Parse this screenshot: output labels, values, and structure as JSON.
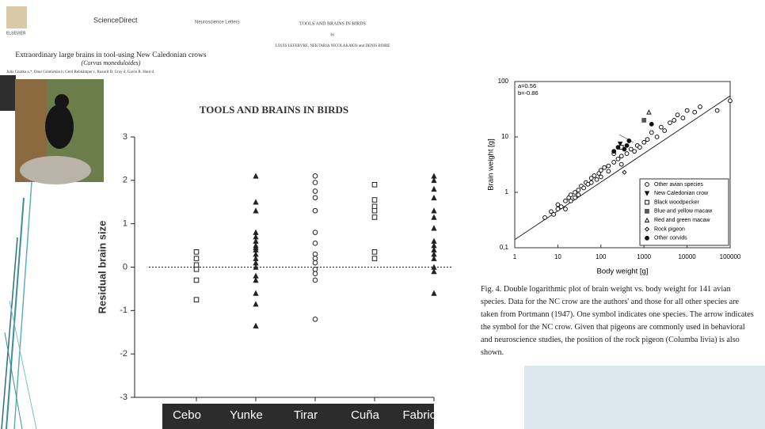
{
  "paper_header": {
    "publisher": "ELSEVIER",
    "site": "ScienceDirect",
    "journal": "Neuroscience Letters",
    "title": "Extraordinary large brains in tool-using New Caledonian crows",
    "species": "(Corvus moneduloides)",
    "authors": "Julia Cnotka a,*, Onur Güntürkün b, Gerd Rehkämper c, Russell D. Gray d, Gavin R. Hunt d"
  },
  "book_header": {
    "title": "TOOLS AND BRAINS IN BIRDS",
    "by": "by",
    "authors": "LOUIS LEFEBVRE, NEKTARIA NICOLAKAKIS and DENIS BOIRE"
  },
  "caption": "Fig. 4. Double logarithmic plot of brain weight vs. body weight for 141 avian species. Data for the NC crow are the authors' and those for all other species are taken from Portmann (1947). One symbol indicates one species. The arrow indicates the symbol for the NC crow. Given that pigeons are commonly used in behavioral and neuroscience studies, the position of the rock pigeon (Columba livia) is also shown.",
  "chart_data": [
    {
      "type": "strip",
      "title": "TOOLS AND BRAINS IN BIRDS",
      "y_label": "Residual brain size",
      "categories": [
        "Cebo",
        "Yunke",
        "Tirar",
        "Cuña",
        "Fabricar"
      ],
      "markers": [
        "square",
        "triangle",
        "circle",
        "square",
        "triangle"
      ],
      "filled": [
        false,
        true,
        false,
        false,
        true
      ],
      "values": [
        [
          0.35,
          0.2,
          0.05,
          -0.05,
          -0.3,
          -0.75
        ],
        [
          2.1,
          1.5,
          1.3,
          0.8,
          0.7,
          0.6,
          0.5,
          0.45,
          0.4,
          0.3,
          0.2,
          0.1,
          0.0,
          -0.2,
          -0.3,
          -0.6,
          -0.85,
          -1.35
        ],
        [
          2.1,
          1.95,
          1.75,
          1.6,
          1.3,
          1.3,
          0.8,
          0.55,
          0.3,
          0.2,
          0.1,
          -0.05,
          -0.15,
          -0.3,
          -1.2
        ],
        [
          1.9,
          1.55,
          1.4,
          1.3,
          1.15,
          0.35,
          0.2
        ],
        [
          2.1,
          2.0,
          1.8,
          1.6,
          1.3,
          1.15,
          0.9,
          0.6,
          0.5,
          0.4,
          0.3,
          0.2,
          0.0,
          -0.1,
          -0.6
        ]
      ],
      "ylim": [
        -3,
        3
      ],
      "yticks": [
        -3,
        -2,
        -1,
        0,
        1,
        2,
        3
      ],
      "zero_line": true
    },
    {
      "type": "scatter",
      "x_label": "Body weight [g]",
      "y_label": "Brain weight [g]",
      "xscale": "log",
      "yscale": "log",
      "xlim": [
        1,
        100000
      ],
      "xticks": [
        1,
        10,
        100,
        1000,
        10000,
        100000
      ],
      "ylim": [
        0.1,
        100
      ],
      "yticks": [
        {
          "value": 0.1,
          "label": "0,1"
        },
        1,
        10,
        100
      ],
      "annotations": [
        "a=0.56",
        "b=-0.86"
      ],
      "fit_line": {
        "x": [
          1,
          100000
        ],
        "y": [
          0.14,
          55
        ]
      },
      "legend": "lower right",
      "series": [
        {
          "name": "Other avian species",
          "marker": "circle",
          "filled": false,
          "color": "#111",
          "x": [
            5,
            7,
            8,
            10,
            10,
            12,
            15,
            15,
            18,
            20,
            20,
            25,
            25,
            30,
            30,
            35,
            40,
            45,
            50,
            60,
            60,
            70,
            80,
            90,
            100,
            100,
            120,
            150,
            150,
            200,
            200,
            250,
            300,
            300,
            400,
            500,
            600,
            700,
            800,
            1000,
            1200,
            1500,
            2000,
            2500,
            3000,
            4000,
            5000,
            6000,
            8000,
            10000,
            15000,
            20000,
            50000,
            100000
          ],
          "y": [
            0.35,
            0.45,
            0.4,
            0.5,
            0.6,
            0.55,
            0.5,
            0.7,
            0.8,
            0.7,
            0.9,
            1.0,
            0.8,
            1.1,
            0.9,
            1.3,
            1.2,
            1.5,
            1.4,
            1.8,
            1.5,
            2.0,
            1.7,
            2.2,
            2.5,
            1.9,
            2.8,
            3.0,
            2.4,
            3.5,
            5.0,
            4.0,
            4.5,
            3.2,
            5.0,
            6.0,
            5.5,
            7.0,
            6.5,
            8.0,
            9.0,
            12,
            10,
            15,
            13,
            18,
            20,
            25,
            22,
            30,
            28,
            35,
            30,
            45
          ]
        },
        {
          "name": "New Caledonian crow",
          "marker": "triangle-down",
          "filled": true,
          "color": "#111",
          "x": [
            280
          ],
          "y": [
            7.5
          ]
        },
        {
          "name": "Black woodpecker",
          "marker": "square",
          "filled": false,
          "color": "#111",
          "x": [
            300
          ],
          "y": [
            6.5
          ]
        },
        {
          "name": "Blue and yellow macaw",
          "marker": "square",
          "filled": true,
          "color": "#555",
          "x": [
            1000
          ],
          "y": [
            20
          ]
        },
        {
          "name": "Red and green macaw",
          "marker": "triangle",
          "filled": false,
          "color": "#111",
          "x": [
            1300
          ],
          "y": [
            28
          ]
        },
        {
          "name": "Rock pigeon",
          "marker": "diamond",
          "filled": false,
          "color": "#111",
          "x": [
            350
          ],
          "y": [
            2.3
          ]
        },
        {
          "name": "Other corvids",
          "marker": "circle",
          "filled": true,
          "color": "#111",
          "x": [
            200,
            250,
            350,
            400,
            450,
            1500
          ],
          "y": [
            5.5,
            6.5,
            6,
            7,
            8.5,
            17
          ]
        }
      ]
    }
  ]
}
